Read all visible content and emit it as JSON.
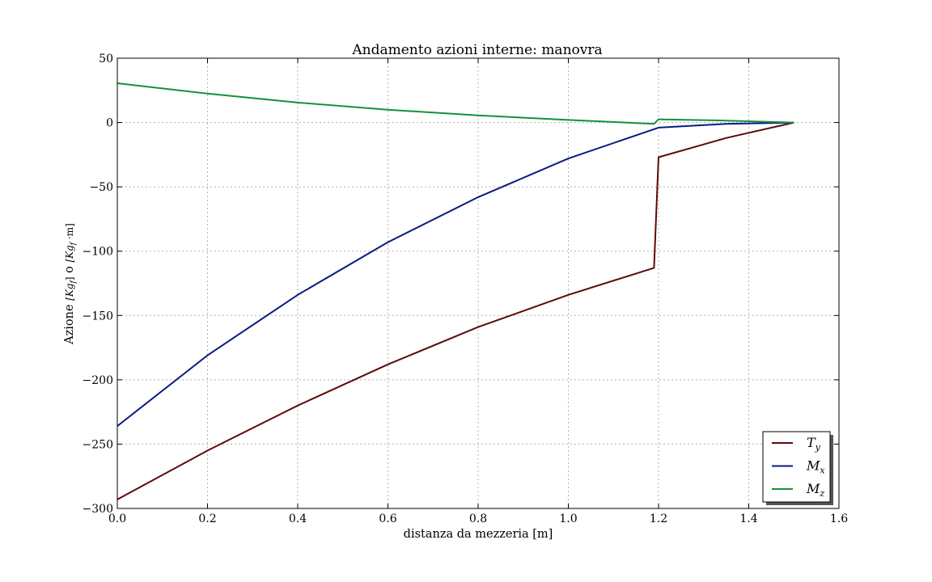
{
  "chart_data": {
    "type": "line",
    "title": "Andamento azioni interne: manovra",
    "xlabel": "distanza da mezzeria [m]",
    "ylabel_prefix": "Azione ",
    "ylabel_unit1": "[Kg",
    "ylabel_unit1_sub": "f",
    "ylabel_unit1_close": "]",
    "ylabel_mid": " o ",
    "ylabel_unit2": "[Kg",
    "ylabel_unit2_sub": "f",
    "ylabel_unit2_close": " ·m]",
    "xlim": [
      0.0,
      1.6
    ],
    "ylim": [
      -300,
      50
    ],
    "xticks": [
      0.0,
      0.2,
      0.4,
      0.6,
      0.8,
      1.0,
      1.2,
      1.4,
      1.6
    ],
    "xtick_labels": [
      "0.0",
      "0.2",
      "0.4",
      "0.6",
      "0.8",
      "1.0",
      "1.2",
      "1.4",
      "1.6"
    ],
    "yticks": [
      50,
      0,
      -50,
      -100,
      -150,
      -200,
      -250,
      -300
    ],
    "ytick_labels": [
      "50",
      "0",
      "−50",
      "−100",
      "−150",
      "−200",
      "−250",
      "−300"
    ],
    "grid": true,
    "legend_position": "bottom-right",
    "series": [
      {
        "name": "T",
        "name_sub": "y",
        "color": "#5c0a0a",
        "x": [
          0.0,
          0.2,
          0.4,
          0.6,
          0.8,
          1.0,
          1.19,
          1.2,
          1.35,
          1.5
        ],
        "y": [
          -293,
          -255,
          -220,
          -188,
          -159,
          -134,
          -113,
          -27,
          -12,
          0
        ]
      },
      {
        "name": "M",
        "name_sub": "x",
        "color": "#0a1a80",
        "x": [
          0.0,
          0.2,
          0.4,
          0.6,
          0.8,
          1.0,
          1.2,
          1.35,
          1.5
        ],
        "y": [
          -236,
          -181,
          -134,
          -93,
          -58,
          -28,
          -4,
          -1,
          0
        ]
      },
      {
        "name": "M",
        "name_sub": "z",
        "color": "#14913c",
        "x": [
          0.0,
          0.2,
          0.4,
          0.6,
          0.8,
          1.0,
          1.19,
          1.2,
          1.35,
          1.5
        ],
        "y": [
          30.5,
          22.5,
          15.5,
          10,
          5.5,
          2,
          -1,
          2.5,
          1.5,
          0
        ]
      }
    ]
  }
}
